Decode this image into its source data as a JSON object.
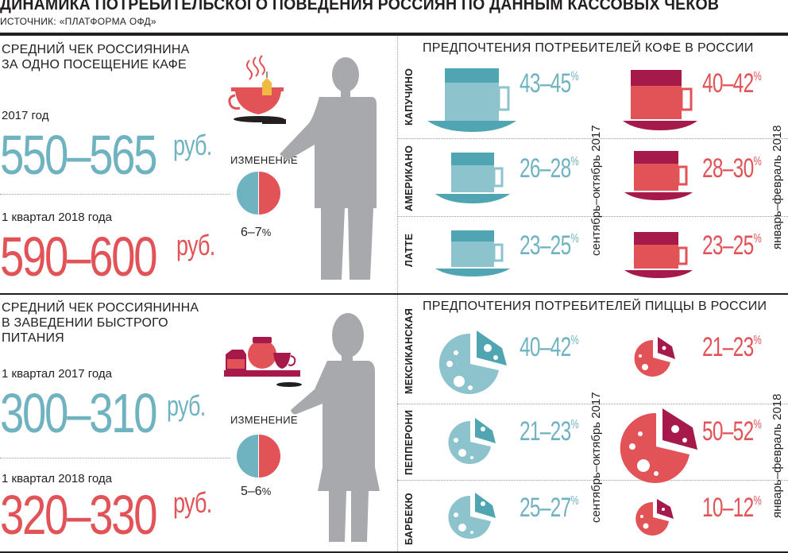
{
  "header": {
    "title": "ДИНАМИКА ПОТРЕБИТЕЛЬСКОГО ПОВЕДЕНИЯ РОССИЯН ПО ДАННЫМ КАССОВЫХ ЧЕКОВ",
    "source": "ИСТОЧНИК: «ПЛАТФОРМА ОФД»"
  },
  "cafe": {
    "heading_line1": "СРЕДНИЙ ЧЕК РОССИЯНИНА",
    "heading_line2": "ЗА ОДНО ПОСЕЩЕНИЕ КАФЕ",
    "period1": "2017 год",
    "value1": "550–565",
    "period2": "1 квартал 2018 года",
    "value2": "590–600",
    "currency": "руб.",
    "change_label": "ИЗМЕНЕНИЕ",
    "change_value": "6–7",
    "change_unit": "%"
  },
  "fastfood": {
    "heading_line1": "СРЕДНИЙ ЧЕК РОССИЯНИННА",
    "heading_line2": "В ЗАВЕДЕНИИ БЫСТРОГО",
    "heading_line3": "ПИТАНИЯ",
    "period1": "1 квартал 2017 года",
    "value1": "300–310",
    "period2": "1 квартал 2018 года",
    "value2": "320–330",
    "currency": "руб.",
    "change_label": "ИЗМЕНЕНИЕ",
    "change_value": "5–6",
    "change_unit": "%"
  },
  "coffee": {
    "heading": "ПРЕДПОЧТЕНИЯ ПОТРЕБИТЕЛЕЙ КОФЕ В РОССИИ",
    "period_a": "сентябрь–октябрь 2017",
    "period_b": "январь–февраль 2018",
    "unit": "%",
    "rows": [
      {
        "label": "КАПУЧИНО",
        "a": "43–45",
        "b": "40–42"
      },
      {
        "label": "АМЕРИКАНО",
        "a": "26–28",
        "b": "28–30"
      },
      {
        "label": "ЛАТТЕ",
        "a": "23–25",
        "b": "23–25"
      }
    ]
  },
  "pizza": {
    "heading": "ПРЕДПОЧТЕНИЯ ПОТРЕБИТЕЛЕЙ ПИЦЦЫ В РОССИИ",
    "period_a": "сентябрь–октябрь 2017",
    "period_b": "январь–февраль 2018",
    "unit": "%",
    "rows": [
      {
        "label": "МЕКСИКАНСКАЯ",
        "a": "40–42",
        "b": "21–23"
      },
      {
        "label": "ПЕППЕРОНИ",
        "a": "21–23",
        "b": "50–52"
      },
      {
        "label": "БАРБЕКЮ",
        "a": "25–27",
        "b": "10–12"
      }
    ]
  },
  "colors": {
    "blue": "#6fb3c1",
    "red": "#e15357",
    "dark_red": "#a6194b",
    "teal": "#4fa6b2",
    "gray": "#a7a9ac"
  }
}
